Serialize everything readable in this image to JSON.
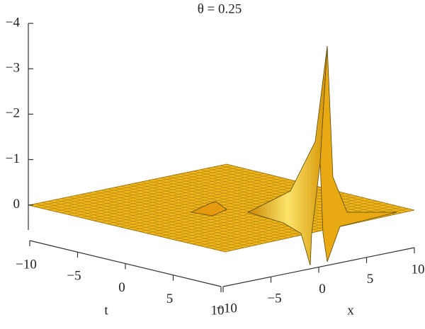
{
  "chart_data": {
    "type": "surface",
    "title": "θ = 0.25",
    "xlabel": "x",
    "ylabel": "t",
    "xlim": [
      -10,
      10
    ],
    "xticks": [
      {
        "value": -10,
        "label": "−10"
      },
      {
        "value": -5,
        "label": "−5"
      },
      0,
      5,
      10
    ],
    "ylim": [
      -10,
      10
    ],
    "yticks": [
      {
        "value": -10,
        "label": "−10"
      },
      {
        "value": -5,
        "label": "−5"
      },
      0,
      5,
      10
    ],
    "zlim": [
      0.55,
      -4
    ],
    "zticks": [
      {
        "value": -4,
        "label": "−4"
      },
      {
        "value": -3,
        "label": "−3"
      },
      {
        "value": -2,
        "label": "−2"
      },
      {
        "value": -1,
        "label": "−1"
      },
      0
    ],
    "color": "#f2b517"
  }
}
